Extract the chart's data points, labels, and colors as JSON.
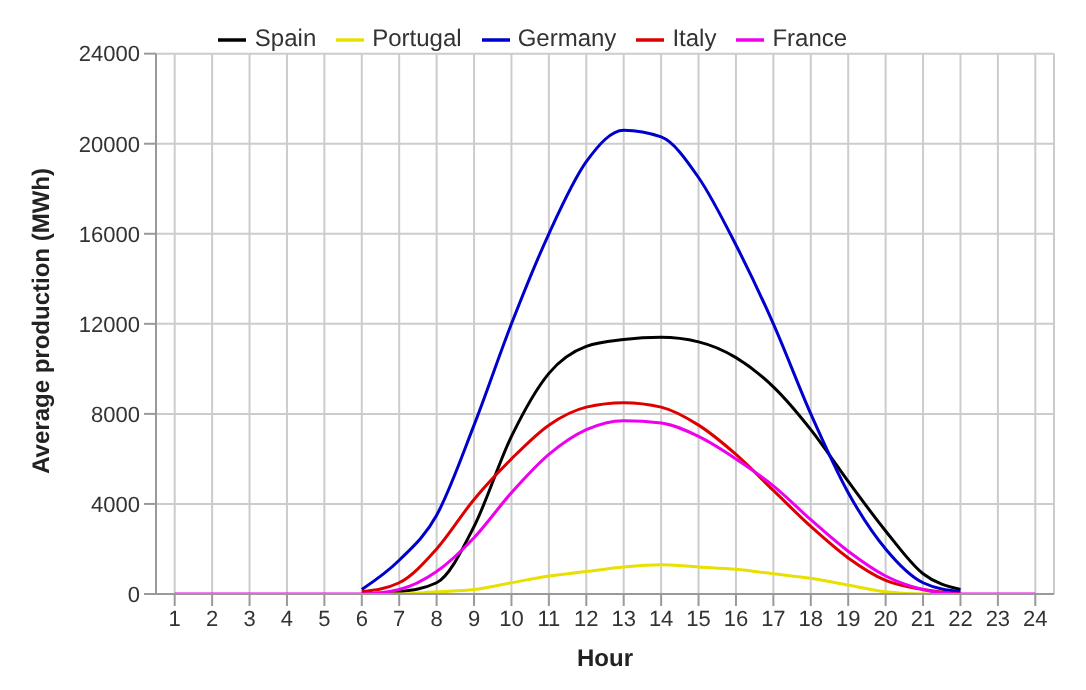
{
  "chart_data": {
    "type": "line",
    "xlabel": "Hour",
    "ylabel": "Average production (MWh)",
    "x": [
      1,
      2,
      3,
      4,
      5,
      6,
      7,
      8,
      9,
      10,
      11,
      12,
      13,
      14,
      15,
      16,
      17,
      18,
      19,
      20,
      21,
      22,
      23,
      24
    ],
    "xlim": [
      0.5,
      24.5
    ],
    "xticks": [
      1,
      2,
      3,
      4,
      5,
      6,
      7,
      8,
      9,
      10,
      11,
      12,
      13,
      14,
      15,
      16,
      17,
      18,
      19,
      20,
      21,
      22,
      23,
      24
    ],
    "ylim": [
      0,
      24000
    ],
    "yticks": [
      0,
      4000,
      8000,
      12000,
      16000,
      20000,
      24000
    ],
    "grid": true,
    "legend": "top",
    "marker": "none",
    "line_style": "solid",
    "series": [
      {
        "name": "Spain",
        "color": "#000000",
        "values": [
          null,
          null,
          null,
          null,
          null,
          0,
          100,
          500,
          3000,
          7000,
          9800,
          11000,
          11300,
          11400,
          11200,
          10500,
          9200,
          7300,
          5000,
          2800,
          900,
          200,
          null,
          null
        ]
      },
      {
        "name": "Portugal",
        "color": "#e8e000",
        "values": [
          null,
          null,
          null,
          null,
          null,
          0,
          0,
          100,
          200,
          500,
          800,
          1000,
          1200,
          1300,
          1200,
          1100,
          900,
          700,
          400,
          100,
          0,
          0,
          null,
          null
        ]
      },
      {
        "name": "Germany",
        "color": "#0000cc",
        "values": [
          null,
          null,
          null,
          null,
          null,
          200,
          1500,
          3500,
          7500,
          12000,
          16000,
          19200,
          20600,
          20300,
          18500,
          15500,
          12000,
          8000,
          4500,
          2000,
          500,
          100,
          null,
          null
        ]
      },
      {
        "name": "Italy",
        "color": "#dd0000",
        "values": [
          null,
          null,
          null,
          null,
          null,
          100,
          500,
          2000,
          4200,
          6000,
          7500,
          8300,
          8500,
          8300,
          7500,
          6200,
          4600,
          3000,
          1600,
          600,
          200,
          0,
          null,
          null
        ]
      },
      {
        "name": "France",
        "color": "#ee00ee",
        "values": [
          0,
          0,
          0,
          0,
          0,
          0,
          200,
          1000,
          2500,
          4500,
          6200,
          7300,
          7700,
          7600,
          7000,
          6000,
          4800,
          3300,
          1900,
          800,
          200,
          0,
          0,
          0
        ]
      }
    ]
  }
}
